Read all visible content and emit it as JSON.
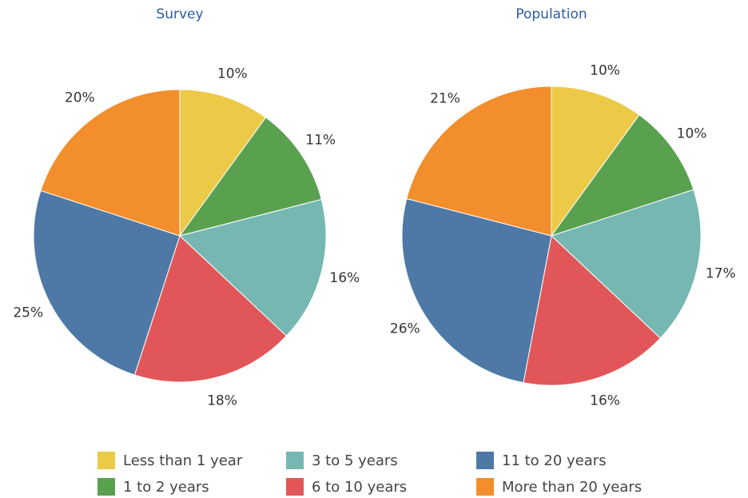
{
  "chart_data": [
    {
      "type": "pie",
      "title": "Survey",
      "categories": [
        "Less than 1 year",
        "1 to 2 years",
        "3 to 5 years",
        "6 to 10 years",
        "11 to 20 years",
        "More than 20 years"
      ],
      "values": [
        10,
        11,
        16,
        18,
        25,
        20
      ],
      "value_labels": [
        "10%",
        "11%",
        "16%",
        "18%",
        "25%",
        "20%"
      ],
      "colors": [
        "#edc948",
        "#59a14f",
        "#76b7b2",
        "#e15759",
        "#4e79a7",
        "#f28e2b"
      ]
    },
    {
      "type": "pie",
      "title": "Population",
      "categories": [
        "Less than 1 year",
        "1 to 2 years",
        "3 to 5 years",
        "6 to 10 years",
        "11 to 20 years",
        "More than 20 years"
      ],
      "values": [
        10,
        10,
        17,
        16,
        26,
        21
      ],
      "value_labels": [
        "10%",
        "10%",
        "17%",
        "16%",
        "26%",
        "21%"
      ],
      "colors": [
        "#edc948",
        "#59a14f",
        "#76b7b2",
        "#e15759",
        "#4e79a7",
        "#f28e2b"
      ]
    }
  ]
}
